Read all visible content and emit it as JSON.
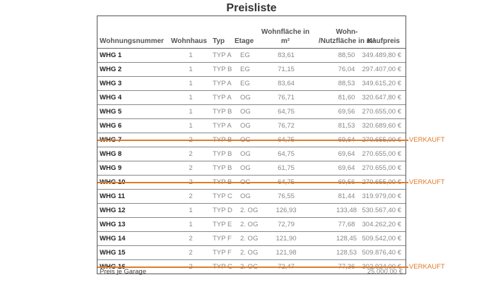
{
  "title": "Preisliste",
  "headers": [
    "Wohnungsnummer",
    "Wohnhaus",
    "Typ",
    "Etage",
    "Wohnfläche in m²",
    "Wohn- /Nutzfläche in m²",
    "Kaufpreis"
  ],
  "sold_label": "VERKAUFT",
  "accent_color": "#e07b28",
  "rows": [
    [
      "WHG 1",
      "1",
      "TYP A",
      "EG",
      "83,61",
      "88,50",
      "349.489,80 €",
      false
    ],
    [
      "WHG 2",
      "1",
      "TYP B",
      "EG",
      "71,15",
      "76,04",
      "297.407,00 €",
      false
    ],
    [
      "WHG 3",
      "1",
      "TYP A",
      "EG",
      "83,64",
      "88,53",
      "349.615,20 €",
      false
    ],
    [
      "WHG 4",
      "1",
      "TYP A",
      "OG",
      "76,71",
      "81,60",
      "320.647,80 €",
      false
    ],
    [
      "WHG 5",
      "1",
      "TYP B",
      "OG",
      "64,75",
      "69,56",
      "270.655,00 €",
      false
    ],
    [
      "WHG 6",
      "1",
      "TYP A",
      "OG",
      "76,72",
      "81,53",
      "320.689,60 €",
      false
    ],
    [
      "WHG 7",
      "2",
      "TYP B",
      "OG",
      "64,75",
      "69,64",
      "270.655,00 €",
      true
    ],
    [
      "WHG 8",
      "2",
      "TYP B",
      "OG",
      "64,75",
      "69,64",
      "270.655,00 €",
      false
    ],
    [
      "WHG 9",
      "2",
      "TYP B",
      "OG",
      "61,75",
      "69,64",
      "270.655,00 €",
      false
    ],
    [
      "WHG 10",
      "2",
      "TYP B",
      "OG",
      "64,75",
      "69,56",
      "270.655,00 €",
      true
    ],
    [
      "WHG 11",
      "2",
      "TYP C",
      "OG",
      "76,55",
      "81,44",
      "319.979,00 €",
      false
    ],
    [
      "WHG 12",
      "1",
      "TYP D",
      "2. OG",
      "126,93",
      "133,48",
      "530.567,40 €",
      false
    ],
    [
      "WHG 13",
      "1",
      "TYP E",
      "2. OG",
      "72,79",
      "77,68",
      "304.262,20 €",
      false
    ],
    [
      "WHG 14",
      "2",
      "TYP F",
      "2. OG",
      "121,90",
      "128,45",
      "509.542,00 €",
      false
    ],
    [
      "WHG 15",
      "2",
      "TYP F",
      "2. OG",
      "121,98",
      "128,53",
      "509.876,40 €",
      false
    ],
    [
      "WHG 16",
      "2",
      "TYP G",
      "2. OG",
      "72,47",
      "77,36",
      "302.924,00 €",
      true
    ]
  ],
  "garage": {
    "label": "Preis je Garage",
    "price": "25.000,00 €"
  }
}
